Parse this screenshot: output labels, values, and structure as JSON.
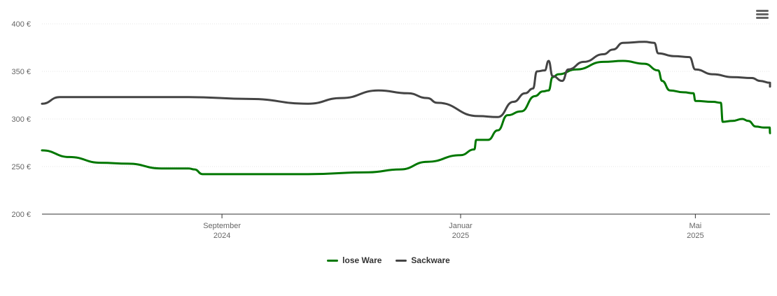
{
  "chart_data": {
    "type": "line",
    "y_ticks": [
      "400 €",
      "350 €",
      "300 €",
      "250 €",
      "200 €"
    ],
    "y_tick_values": [
      400,
      350,
      300,
      250,
      200
    ],
    "ylim": [
      200,
      400
    ],
    "xlim": [
      "2024-06-01",
      "2025-06-01"
    ],
    "x_ticks": [
      {
        "date": "2024-09-01",
        "month": "September",
        "year": "2024"
      },
      {
        "date": "2025-01-01",
        "month": "Januar",
        "year": "2025"
      },
      {
        "date": "2025-05-01",
        "month": "Mai",
        "year": "2025"
      }
    ],
    "grid": true,
    "legend_position": "bottom-center",
    "series": [
      {
        "name": "lose Ware",
        "color": "#007700",
        "points": [
          [
            "2024-06-01",
            267
          ],
          [
            "2024-06-15",
            260
          ],
          [
            "2024-07-01",
            254
          ],
          [
            "2024-07-15",
            253
          ],
          [
            "2024-08-01",
            248
          ],
          [
            "2024-08-15",
            248
          ],
          [
            "2024-08-18",
            247
          ],
          [
            "2024-08-22",
            242
          ],
          [
            "2024-09-15",
            242
          ],
          [
            "2024-10-15",
            242
          ],
          [
            "2024-11-15",
            244
          ],
          [
            "2024-12-01",
            247
          ],
          [
            "2024-12-15",
            255
          ],
          [
            "2025-01-01",
            262
          ],
          [
            "2025-01-08",
            268
          ],
          [
            "2025-01-09",
            278
          ],
          [
            "2025-01-15",
            278
          ],
          [
            "2025-01-20",
            288
          ],
          [
            "2025-01-25",
            304
          ],
          [
            "2025-02-01",
            308
          ],
          [
            "2025-02-08",
            324
          ],
          [
            "2025-02-12",
            329
          ],
          [
            "2025-02-15",
            330
          ],
          [
            "2025-02-17",
            344
          ],
          [
            "2025-02-20",
            347
          ],
          [
            "2025-03-01",
            352
          ],
          [
            "2025-03-15",
            360
          ],
          [
            "2025-03-25",
            361
          ],
          [
            "2025-04-05",
            358
          ],
          [
            "2025-04-12",
            351
          ],
          [
            "2025-04-14",
            340
          ],
          [
            "2025-04-18",
            330
          ],
          [
            "2025-04-25",
            328
          ],
          [
            "2025-04-30",
            327
          ],
          [
            "2025-05-01",
            319
          ],
          [
            "2025-05-10",
            318
          ],
          [
            "2025-05-14",
            317
          ],
          [
            "2025-05-15",
            297
          ],
          [
            "2025-05-20",
            298
          ],
          [
            "2025-05-25",
            300
          ],
          [
            "2025-05-28",
            298
          ],
          [
            "2025-06-01",
            292
          ],
          [
            "2025-06-05",
            291
          ],
          [
            "2025-06-08",
            291
          ],
          [
            "2025-06-09",
            285
          ]
        ]
      },
      {
        "name": "Sackware",
        "color": "#444444",
        "points": [
          [
            "2024-06-01",
            316
          ],
          [
            "2024-06-10",
            323
          ],
          [
            "2024-07-15",
            323
          ],
          [
            "2024-08-15",
            323
          ],
          [
            "2024-09-15",
            321
          ],
          [
            "2024-10-15",
            316
          ],
          [
            "2024-11-01",
            322
          ],
          [
            "2024-11-20",
            330
          ],
          [
            "2024-12-05",
            327
          ],
          [
            "2024-12-15",
            322
          ],
          [
            "2024-12-20",
            317
          ],
          [
            "2025-01-10",
            303
          ],
          [
            "2025-01-20",
            302
          ],
          [
            "2025-01-28",
            318
          ],
          [
            "2025-02-03",
            327
          ],
          [
            "2025-02-07",
            332
          ],
          [
            "2025-02-09",
            350
          ],
          [
            "2025-02-13",
            351
          ],
          [
            "2025-02-15",
            361
          ],
          [
            "2025-02-17",
            345
          ],
          [
            "2025-02-22",
            340
          ],
          [
            "2025-02-25",
            352
          ],
          [
            "2025-03-05",
            360
          ],
          [
            "2025-03-15",
            368
          ],
          [
            "2025-03-20",
            373
          ],
          [
            "2025-03-25",
            380
          ],
          [
            "2025-04-05",
            381
          ],
          [
            "2025-04-10",
            380
          ],
          [
            "2025-04-12",
            369
          ],
          [
            "2025-04-20",
            366
          ],
          [
            "2025-04-28",
            365
          ],
          [
            "2025-05-01",
            352
          ],
          [
            "2025-05-10",
            347
          ],
          [
            "2025-05-20",
            344
          ],
          [
            "2025-05-30",
            343
          ],
          [
            "2025-06-03",
            340
          ],
          [
            "2025-06-10",
            338
          ],
          [
            "2025-06-15",
            334
          ]
        ]
      }
    ]
  },
  "legend": {
    "items": [
      {
        "label": "lose Ware",
        "color": "#007700"
      },
      {
        "label": "Sackware",
        "color": "#444444"
      }
    ]
  },
  "toolbar": {
    "menu_icon": "hamburger-menu-icon"
  }
}
